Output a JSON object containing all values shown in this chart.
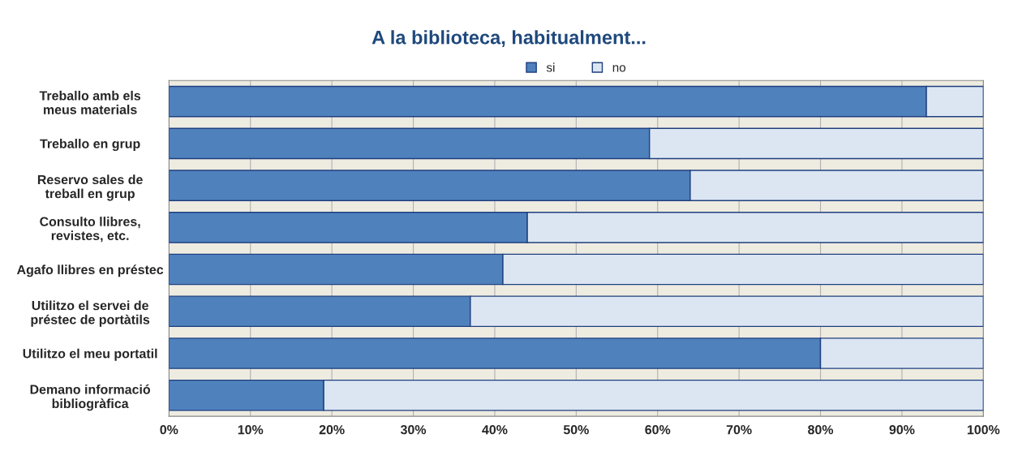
{
  "chart_data": {
    "type": "bar",
    "title": "A la biblioteca, habitualment...",
    "orientation": "horizontal",
    "stacked": true,
    "categories": [
      "Treballo amb els\nmeus materials",
      "Treballo en grup",
      "Reservo sales de\ntreball en grup",
      "Consulto llibres,\nrevistes, etc.",
      "Agafo llibres en préstec",
      "Utilitzo el servei de\npréstec de portàtils",
      "Utilitzo el meu portatil",
      "Demano informació\nbibliogràfica"
    ],
    "series": [
      {
        "name": "si",
        "color": "#4f81bd",
        "values": [
          93,
          59,
          64,
          44,
          41,
          37,
          80,
          19
        ]
      },
      {
        "name": "no",
        "color": "#dce6f2",
        "values": [
          7,
          41,
          36,
          56,
          59,
          63,
          20,
          81
        ]
      }
    ],
    "xlim": [
      0,
      100
    ],
    "xticks": [
      {
        "value": 0,
        "label": "0%"
      },
      {
        "value": 10,
        "label": "10%"
      },
      {
        "value": 20,
        "label": "20%"
      },
      {
        "value": 30,
        "label": "30%"
      },
      {
        "value": 40,
        "label": "40%"
      },
      {
        "value": 50,
        "label": "50%"
      },
      {
        "value": 60,
        "label": "60%"
      },
      {
        "value": 70,
        "label": "70%"
      },
      {
        "value": 80,
        "label": "80%"
      },
      {
        "value": 90,
        "label": "90%"
      },
      {
        "value": 100,
        "label": "100%"
      }
    ],
    "grid": "x",
    "legend": "top"
  }
}
